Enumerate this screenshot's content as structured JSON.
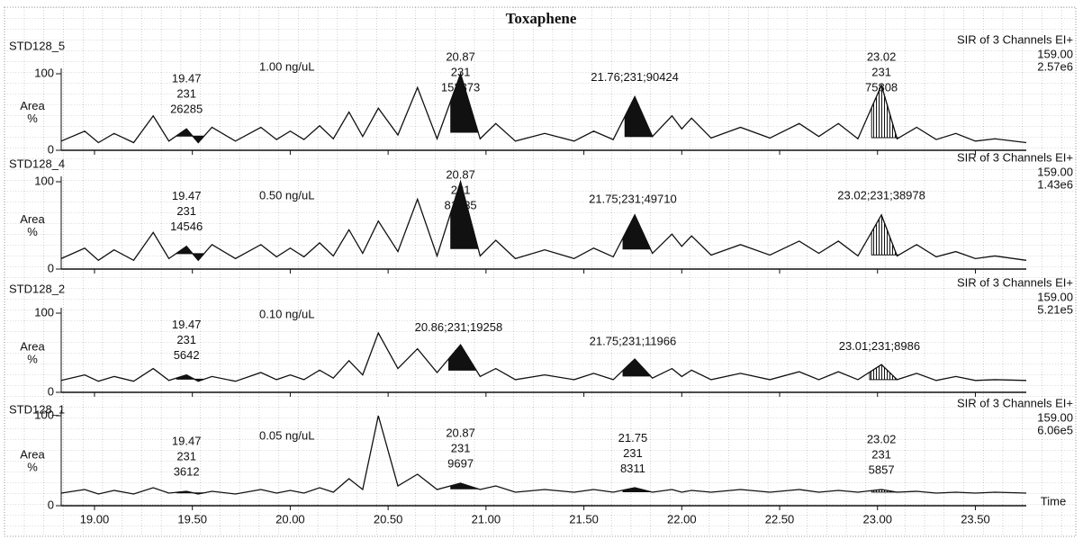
{
  "chart_data": [
    {
      "type": "line",
      "title": "Toxaphene",
      "name": "STD128_5",
      "concentration": "1.00 ng/uL",
      "channel": "SIR of 3 Channels EI+",
      "mass": "159.00",
      "intensity": "2.57e6",
      "ylabel": [
        "Area",
        "%"
      ],
      "xlim": [
        18.83,
        23.76
      ],
      "ylim": [
        0,
        100
      ],
      "yticks": [
        0,
        100
      ],
      "color": "#111111",
      "x": [
        18.83,
        18.95,
        19.02,
        19.1,
        19.2,
        19.3,
        19.38,
        19.47,
        19.53,
        19.6,
        19.72,
        19.85,
        19.93,
        20.0,
        20.07,
        20.15,
        20.22,
        20.3,
        20.37,
        20.45,
        20.55,
        20.65,
        20.75,
        20.87,
        20.97,
        21.05,
        21.15,
        21.3,
        21.45,
        21.55,
        21.65,
        21.76,
        21.85,
        21.95,
        22.0,
        22.05,
        22.15,
        22.3,
        22.45,
        22.6,
        22.7,
        22.8,
        22.9,
        23.02,
        23.1,
        23.2,
        23.3,
        23.4,
        23.5,
        23.6,
        23.76
      ],
      "values": [
        12,
        25,
        10,
        22,
        10,
        45,
        12,
        28,
        10,
        30,
        12,
        30,
        14,
        25,
        14,
        32,
        15,
        50,
        18,
        55,
        20,
        82,
        15,
        100,
        15,
        35,
        12,
        22,
        12,
        25,
        14,
        70,
        18,
        45,
        28,
        42,
        16,
        30,
        16,
        35,
        18,
        35,
        15,
        85,
        15,
        30,
        14,
        22,
        12,
        15,
        10
      ],
      "peaks": [
        {
          "rt": 19.47,
          "fill": "solid",
          "lines": [
            "19.47",
            "231",
            "26285"
          ]
        },
        {
          "rt": 20.87,
          "fill": "solid",
          "lines": [
            "20.87",
            "231",
            "152873"
          ]
        },
        {
          "rt": 21.76,
          "fill": "solid",
          "lines": [
            "21.76;231;90424"
          ]
        },
        {
          "rt": 23.02,
          "fill": "hatched",
          "lines": [
            "23.02",
            "231",
            "75808"
          ]
        }
      ]
    },
    {
      "type": "line",
      "name": "STD128_4",
      "concentration": "0.50 ng/uL",
      "channel": "SIR of 3 Channels EI+",
      "mass": "159.00",
      "intensity": "1.43e6",
      "ylabel": [
        "Area",
        "%"
      ],
      "xlim": [
        18.83,
        23.76
      ],
      "ylim": [
        0,
        100
      ],
      "yticks": [
        0,
        100
      ],
      "color": "#111111",
      "x": [
        18.83,
        18.95,
        19.02,
        19.1,
        19.2,
        19.3,
        19.38,
        19.47,
        19.53,
        19.6,
        19.72,
        19.85,
        19.93,
        20.0,
        20.07,
        20.15,
        20.22,
        20.3,
        20.37,
        20.45,
        20.55,
        20.65,
        20.75,
        20.87,
        20.97,
        21.05,
        21.15,
        21.3,
        21.45,
        21.55,
        21.65,
        21.76,
        21.85,
        21.95,
        22.0,
        22.05,
        22.15,
        22.3,
        22.45,
        22.6,
        22.7,
        22.8,
        22.9,
        23.02,
        23.1,
        23.2,
        23.3,
        23.4,
        23.5,
        23.6,
        23.76
      ],
      "values": [
        12,
        24,
        10,
        22,
        10,
        42,
        12,
        26,
        10,
        28,
        12,
        28,
        14,
        24,
        14,
        30,
        15,
        45,
        18,
        55,
        20,
        80,
        15,
        100,
        15,
        33,
        12,
        22,
        12,
        24,
        14,
        62,
        18,
        40,
        26,
        38,
        16,
        28,
        16,
        32,
        18,
        32,
        15,
        62,
        15,
        28,
        14,
        20,
        12,
        15,
        10
      ],
      "peaks": [
        {
          "rt": 19.47,
          "fill": "solid",
          "lines": [
            "19.47",
            "231",
            "14546"
          ]
        },
        {
          "rt": 20.87,
          "fill": "solid",
          "lines": [
            "20.87",
            "231",
            "81235"
          ]
        },
        {
          "rt": 21.75,
          "fill": "solid",
          "lines": [
            "21.75;231;49710"
          ]
        },
        {
          "rt": 23.02,
          "fill": "hatched",
          "lines": [
            "23.02;231;38978"
          ]
        }
      ]
    },
    {
      "type": "line",
      "name": "STD128_2",
      "concentration": "0.10 ng/uL",
      "channel": "SIR of 3 Channels EI+",
      "mass": "159.00",
      "intensity": "5.21e5",
      "ylabel": [
        "Area",
        "%"
      ],
      "xlim": [
        18.83,
        23.76
      ],
      "ylim": [
        0,
        100
      ],
      "yticks": [
        0,
        100
      ],
      "color": "#111111",
      "x": [
        18.83,
        18.95,
        19.02,
        19.1,
        19.2,
        19.3,
        19.38,
        19.47,
        19.53,
        19.6,
        19.72,
        19.85,
        19.93,
        20.0,
        20.07,
        20.15,
        20.22,
        20.3,
        20.37,
        20.45,
        20.55,
        20.65,
        20.75,
        20.87,
        20.97,
        21.05,
        21.15,
        21.3,
        21.45,
        21.55,
        21.65,
        21.76,
        21.85,
        21.95,
        22.0,
        22.05,
        22.15,
        22.3,
        22.45,
        22.6,
        22.7,
        22.8,
        22.9,
        23.02,
        23.1,
        23.2,
        23.3,
        23.4,
        23.5,
        23.6,
        23.76
      ],
      "values": [
        15,
        22,
        14,
        20,
        14,
        30,
        15,
        22,
        14,
        20,
        14,
        25,
        16,
        22,
        16,
        28,
        18,
        40,
        22,
        75,
        30,
        55,
        25,
        60,
        20,
        30,
        16,
        22,
        16,
        24,
        16,
        42,
        18,
        30,
        20,
        28,
        16,
        24,
        16,
        26,
        16,
        26,
        16,
        35,
        16,
        24,
        15,
        20,
        15,
        16,
        15
      ],
      "peaks": [
        {
          "rt": 19.47,
          "fill": "solid",
          "lines": [
            "19.47",
            "231",
            "5642"
          ]
        },
        {
          "rt": 20.86,
          "fill": "solid",
          "lines": [
            "20.86;231;19258"
          ]
        },
        {
          "rt": 21.75,
          "fill": "solid",
          "lines": [
            "21.75;231;11966"
          ]
        },
        {
          "rt": 23.01,
          "fill": "hatched",
          "lines": [
            "23.01;231;8986"
          ]
        }
      ]
    },
    {
      "type": "line",
      "name": "STD128_1",
      "concentration": "0.05 ng/uL",
      "channel": "SIR of 3 Channels EI+",
      "mass": "159.00",
      "intensity": "6.06e5",
      "ylabel": [
        "Area",
        "%"
      ],
      "xlabel": "Time",
      "xlim": [
        18.83,
        23.76
      ],
      "ylim": [
        0,
        100
      ],
      "yticks": [
        0,
        100
      ],
      "color": "#111111",
      "xticks": [
        {
          "value": 19,
          "label": "19.00"
        },
        {
          "value": 19.5,
          "label": "19.50"
        },
        {
          "value": 20,
          "label": "20.00"
        },
        {
          "value": 20.5,
          "label": "20.50"
        },
        {
          "value": 21,
          "label": "21.00"
        },
        {
          "value": 21.5,
          "label": "21.50"
        },
        {
          "value": 22,
          "label": "22.00"
        },
        {
          "value": 22.5,
          "label": "22.50"
        },
        {
          "value": 23,
          "label": "23.00"
        },
        {
          "value": 23.5,
          "label": "23.50"
        }
      ],
      "x": [
        18.83,
        18.95,
        19.02,
        19.1,
        19.2,
        19.3,
        19.38,
        19.47,
        19.53,
        19.6,
        19.72,
        19.85,
        19.93,
        20.0,
        20.07,
        20.15,
        20.22,
        20.3,
        20.37,
        20.45,
        20.55,
        20.65,
        20.75,
        20.87,
        20.97,
        21.05,
        21.15,
        21.3,
        21.45,
        21.55,
        21.65,
        21.76,
        21.85,
        21.95,
        22.0,
        22.05,
        22.15,
        22.3,
        22.45,
        22.6,
        22.7,
        22.8,
        22.9,
        23.02,
        23.1,
        23.2,
        23.3,
        23.4,
        23.5,
        23.6,
        23.76
      ],
      "values": [
        14,
        18,
        13,
        17,
        13,
        20,
        14,
        16,
        13,
        16,
        13,
        18,
        14,
        17,
        14,
        20,
        15,
        30,
        18,
        100,
        22,
        35,
        18,
        25,
        18,
        22,
        15,
        18,
        15,
        18,
        15,
        20,
        15,
        18,
        15,
        17,
        15,
        18,
        15,
        18,
        15,
        17,
        15,
        18,
        15,
        16,
        14,
        15,
        14,
        15,
        14
      ],
      "peaks": [
        {
          "rt": 19.47,
          "fill": "solid",
          "lines": [
            "19.47",
            "231",
            "3612"
          ]
        },
        {
          "rt": 20.87,
          "fill": "solid",
          "lines": [
            "20.87",
            "231",
            "9697"
          ]
        },
        {
          "rt": 21.75,
          "fill": "solid",
          "lines": [
            "21.75",
            "231",
            "8311"
          ]
        },
        {
          "rt": 23.02,
          "fill": "hatched",
          "lines": [
            "23.02",
            "231",
            "5857"
          ]
        }
      ]
    }
  ]
}
